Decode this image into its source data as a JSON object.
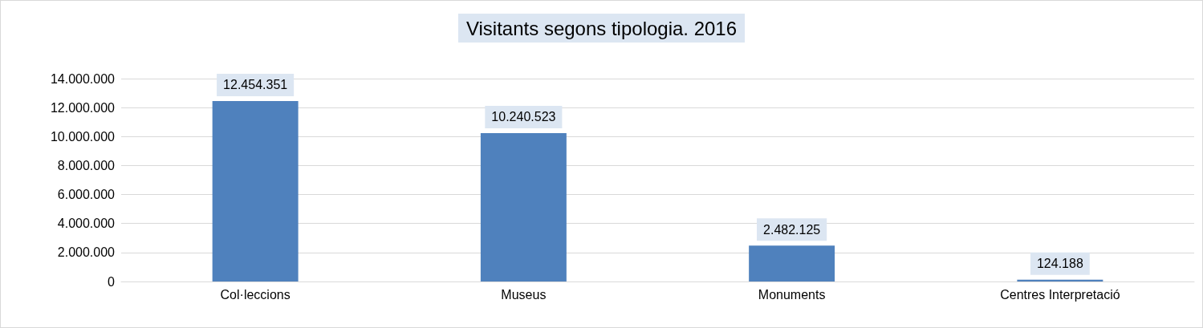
{
  "chart_data": {
    "type": "bar",
    "title": "Visitants segons tipologia. 2016",
    "categories": [
      "Col·leccions",
      "Museus",
      "Monuments",
      "Centres Interpretació"
    ],
    "values": [
      12454351,
      10240523,
      2482125,
      124188
    ],
    "value_labels": [
      "12.454.351",
      "10.240.523",
      "2.482.125",
      "124.188"
    ],
    "color": "#4f81bd",
    "ylim": [
      0,
      14000000
    ],
    "yticks": [
      {
        "value": 0,
        "label": "0"
      },
      {
        "value": 2000000,
        "label": "2.000.000"
      },
      {
        "value": 4000000,
        "label": "4.000.000"
      },
      {
        "value": 6000000,
        "label": "6.000.000"
      },
      {
        "value": 8000000,
        "label": "8.000.000"
      },
      {
        "value": 10000000,
        "label": "10.000.000"
      },
      {
        "value": 12000000,
        "label": "12.000.000"
      },
      {
        "value": 14000000,
        "label": "14.000.000"
      }
    ],
    "grid": "y"
  }
}
